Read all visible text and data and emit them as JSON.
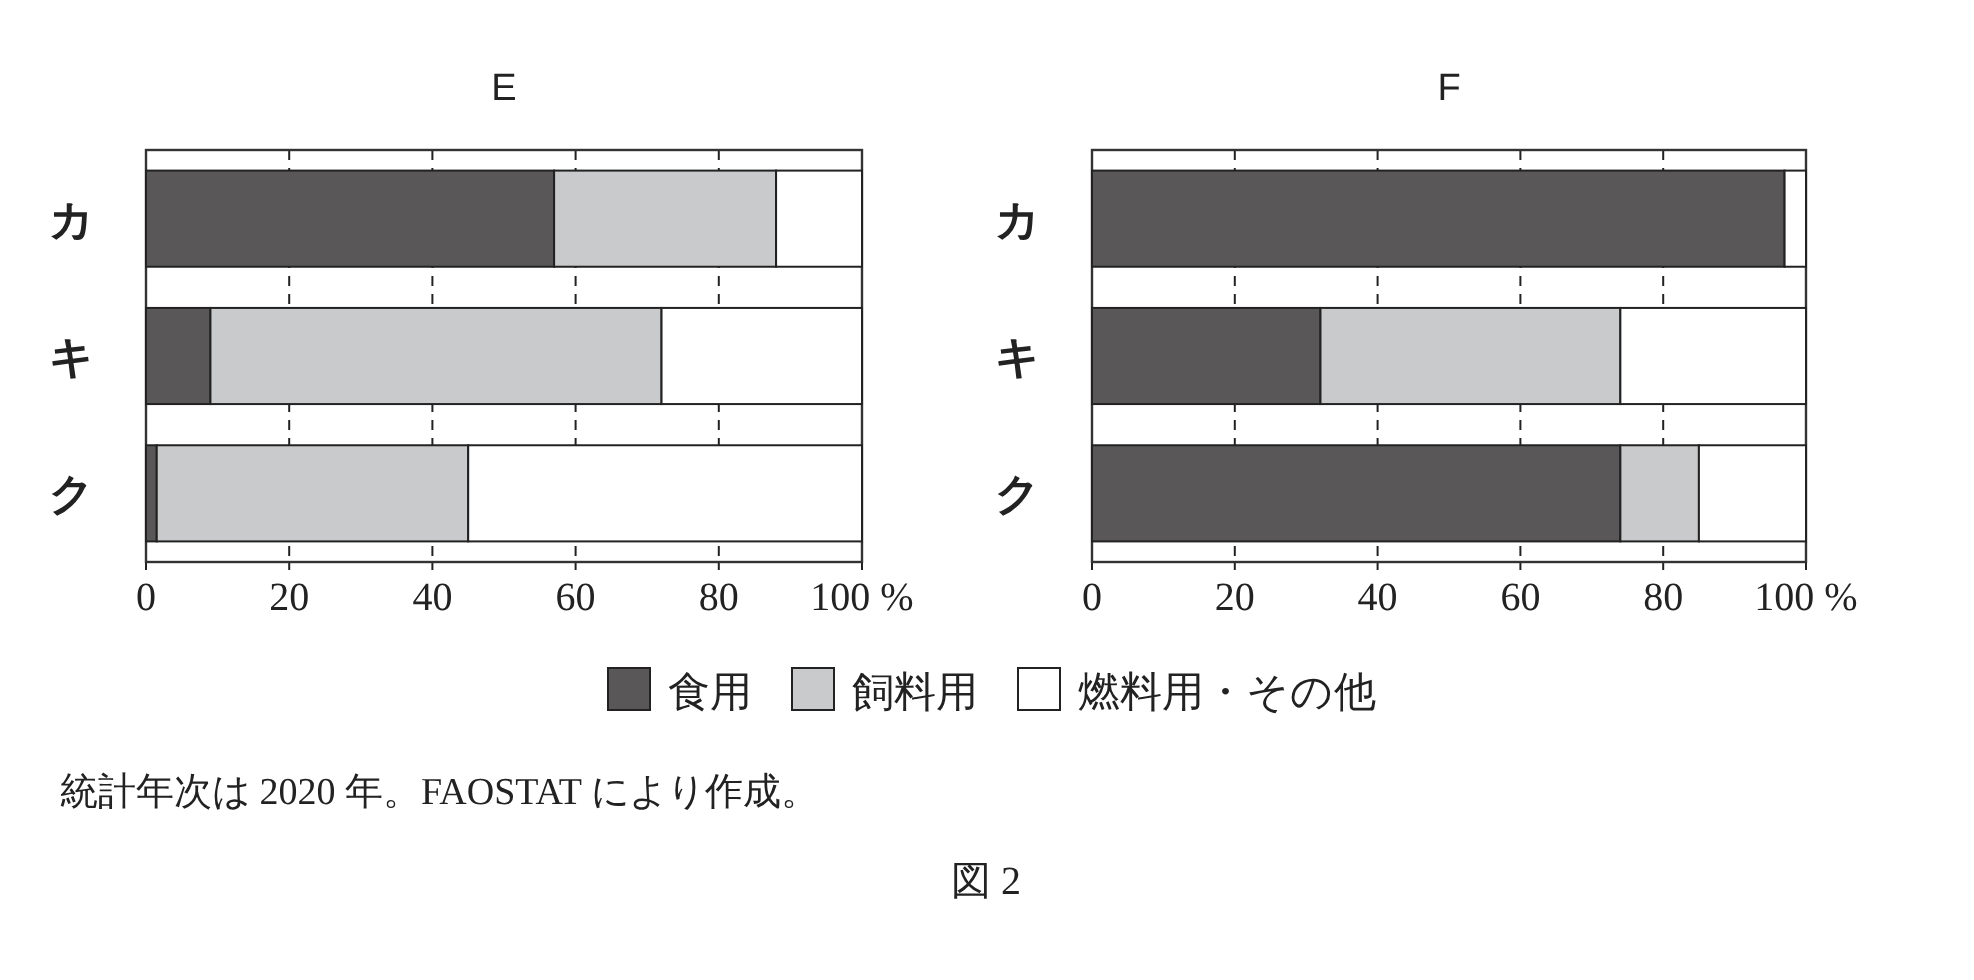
{
  "chart_data": [
    {
      "type": "bar",
      "orientation": "horizontal",
      "stacked": true,
      "title": "E",
      "categories": [
        "カ",
        "キ",
        "ク"
      ],
      "series": [
        {
          "name": "食用",
          "color": "#595757",
          "values": [
            57,
            9,
            1.5
          ]
        },
        {
          "name": "飼料用",
          "color": "#c9cacb",
          "values": [
            31,
            63,
            43.5
          ]
        },
        {
          "name": "燃料用・その他",
          "color": "#ffffff",
          "values": [
            12,
            28,
            55
          ]
        }
      ],
      "xlim": [
        0,
        100
      ],
      "xticks": [
        0,
        20,
        40,
        60,
        80,
        {
          "value": 100,
          "label": "100 %"
        }
      ],
      "grid": "x",
      "legend": "bottom",
      "annotations": [
        "統計年次は 2020 年。FAOSTAT により作成。",
        "図 2"
      ]
    },
    {
      "type": "bar",
      "orientation": "horizontal",
      "stacked": true,
      "title": "F",
      "categories": [
        "カ",
        "キ",
        "ク"
      ],
      "series": [
        {
          "color": "#595757",
          "values": [
            97,
            32,
            74
          ]
        },
        {
          "color": "#c9cacb",
          "values": [
            0,
            42,
            11
          ]
        },
        {
          "color": "#ffffff",
          "values": [
            3,
            26,
            15
          ]
        }
      ],
      "xlim": [
        0,
        100
      ],
      "xticks": [
        0,
        20,
        40,
        60,
        80,
        {
          "value": 100,
          "label": "100 %"
        }
      ],
      "grid": "x"
    }
  ]
}
